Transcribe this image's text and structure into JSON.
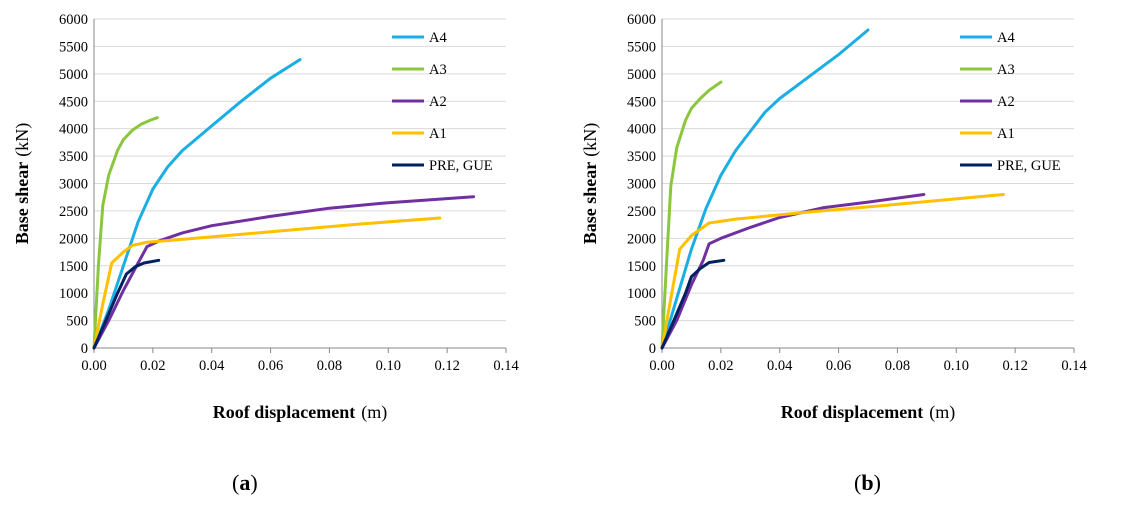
{
  "chart_data": [
    {
      "type": "line",
      "panel_label": "a",
      "xlabel": "Roof displacement",
      "xlabel_unit": "(m)",
      "ylabel": "Base shear",
      "ylabel_unit": "(kN)",
      "xlim": [
        0,
        0.14
      ],
      "ylim": [
        0,
        6000
      ],
      "xticks": [
        "0.00",
        "0.02",
        "0.04",
        "0.06",
        "0.08",
        "0.10",
        "0.12",
        "0.14"
      ],
      "yticks": [
        "0",
        "500",
        "1000",
        "1500",
        "2000",
        "2500",
        "3000",
        "3500",
        "4000",
        "4500",
        "5000",
        "5500",
        "6000"
      ],
      "grid": true,
      "legend_position": "right",
      "series": [
        {
          "name": "A4",
          "color": "#1aaee5",
          "points": [
            [
              0,
              0
            ],
            [
              0.005,
              700
            ],
            [
              0.01,
              1500
            ],
            [
              0.015,
              2300
            ],
            [
              0.02,
              2900
            ],
            [
              0.025,
              3300
            ],
            [
              0.03,
              3600
            ],
            [
              0.04,
              4050
            ],
            [
              0.05,
              4500
            ],
            [
              0.06,
              4920
            ],
            [
              0.07,
              5260
            ]
          ]
        },
        {
          "name": "A3",
          "color": "#8cc63f",
          "points": [
            [
              0,
              0
            ],
            [
              0.0015,
              1500
            ],
            [
              0.003,
              2600
            ],
            [
              0.005,
              3150
            ],
            [
              0.008,
              3600
            ],
            [
              0.01,
              3800
            ],
            [
              0.013,
              3970
            ],
            [
              0.016,
              4080
            ],
            [
              0.019,
              4150
            ],
            [
              0.0215,
              4200
            ]
          ]
        },
        {
          "name": "A2",
          "color": "#7030a0",
          "points": [
            [
              0,
              0
            ],
            [
              0.005,
              500
            ],
            [
              0.01,
              1050
            ],
            [
              0.015,
              1550
            ],
            [
              0.018,
              1850
            ],
            [
              0.022,
              1950
            ],
            [
              0.03,
              2100
            ],
            [
              0.04,
              2230
            ],
            [
              0.06,
              2400
            ],
            [
              0.08,
              2550
            ],
            [
              0.1,
              2650
            ],
            [
              0.129,
              2760
            ]
          ]
        },
        {
          "name": "A1",
          "color": "#ffc000",
          "points": [
            [
              0,
              0
            ],
            [
              0.003,
              800
            ],
            [
              0.006,
              1550
            ],
            [
              0.01,
              1750
            ],
            [
              0.013,
              1870
            ],
            [
              0.018,
              1930
            ],
            [
              0.03,
              1980
            ],
            [
              0.06,
              2120
            ],
            [
              0.09,
              2260
            ],
            [
              0.1175,
              2370
            ]
          ]
        },
        {
          "name": "PRE, GUE",
          "color": "#002060",
          "points": [
            [
              0,
              0
            ],
            [
              0.004,
              500
            ],
            [
              0.008,
              1000
            ],
            [
              0.011,
              1350
            ],
            [
              0.014,
              1480
            ],
            [
              0.017,
              1550
            ],
            [
              0.022,
              1600
            ]
          ]
        }
      ]
    },
    {
      "type": "line",
      "panel_label": "b",
      "xlabel": "Roof displacement",
      "xlabel_unit": "(m)",
      "ylabel": "Base shear",
      "ylabel_unit": "(kN)",
      "xlim": [
        0,
        0.14
      ],
      "ylim": [
        0,
        6000
      ],
      "xticks": [
        "0.00",
        "0.02",
        "0.04",
        "0.06",
        "0.08",
        "0.10",
        "0.12",
        "0.14"
      ],
      "yticks": [
        "0",
        "500",
        "1000",
        "1500",
        "2000",
        "2500",
        "3000",
        "3500",
        "4000",
        "4500",
        "5000",
        "5500",
        "6000"
      ],
      "grid": true,
      "legend_position": "right",
      "series": [
        {
          "name": "A4",
          "color": "#1aaee5",
          "points": [
            [
              0,
              0
            ],
            [
              0.005,
              900
            ],
            [
              0.01,
              1800
            ],
            [
              0.015,
              2550
            ],
            [
              0.02,
              3150
            ],
            [
              0.025,
              3600
            ],
            [
              0.03,
              3950
            ],
            [
              0.035,
              4300
            ],
            [
              0.04,
              4550
            ],
            [
              0.05,
              4950
            ],
            [
              0.06,
              5350
            ],
            [
              0.07,
              5800
            ]
          ]
        },
        {
          "name": "A3",
          "color": "#8cc63f",
          "points": [
            [
              0,
              0
            ],
            [
              0.0015,
              1500
            ],
            [
              0.003,
              2950
            ],
            [
              0.005,
              3650
            ],
            [
              0.008,
              4150
            ],
            [
              0.01,
              4370
            ],
            [
              0.013,
              4550
            ],
            [
              0.016,
              4700
            ],
            [
              0.02,
              4850
            ]
          ]
        },
        {
          "name": "A2",
          "color": "#7030a0",
          "points": [
            [
              0,
              0
            ],
            [
              0.005,
              500
            ],
            [
              0.01,
              1150
            ],
            [
              0.014,
              1600
            ],
            [
              0.016,
              1900
            ],
            [
              0.02,
              2000
            ],
            [
              0.03,
              2200
            ],
            [
              0.04,
              2380
            ],
            [
              0.055,
              2560
            ],
            [
              0.07,
              2660
            ],
            [
              0.089,
              2800
            ]
          ]
        },
        {
          "name": "A1",
          "color": "#ffc000",
          "points": [
            [
              0,
              0
            ],
            [
              0.003,
              900
            ],
            [
              0.006,
              1800
            ],
            [
              0.01,
              2050
            ],
            [
              0.016,
              2280
            ],
            [
              0.025,
              2350
            ],
            [
              0.05,
              2480
            ],
            [
              0.08,
              2620
            ],
            [
              0.116,
              2800
            ]
          ]
        },
        {
          "name": "PRE, GUE",
          "color": "#002060",
          "points": [
            [
              0,
              0
            ],
            [
              0.004,
              500
            ],
            [
              0.008,
              1000
            ],
            [
              0.01,
              1300
            ],
            [
              0.013,
              1450
            ],
            [
              0.016,
              1560
            ],
            [
              0.021,
              1600
            ]
          ]
        }
      ]
    }
  ]
}
